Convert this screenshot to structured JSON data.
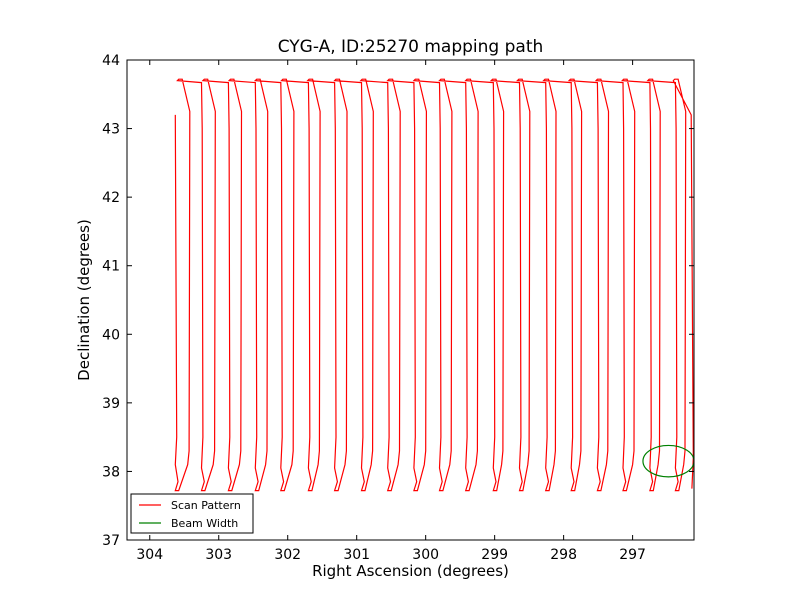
{
  "chart_data": {
    "type": "line",
    "title": "CYG-A, ID:25270 mapping path",
    "xlabel": "Right Ascension (degrees)",
    "ylabel": "Declination (degrees)",
    "xlim": [
      304.33,
      296.11
    ],
    "ylim": [
      37,
      44
    ],
    "x_reversed": true,
    "xticks": [
      304,
      303,
      302,
      301,
      300,
      299,
      298,
      297
    ],
    "xtick_labels": [
      "304",
      "303",
      "302",
      "301",
      "300",
      "299",
      "298",
      "297"
    ],
    "yticks": [
      37,
      38,
      39,
      40,
      41,
      42,
      43,
      44
    ],
    "ytick_labels": [
      "37",
      "38",
      "39",
      "40",
      "41",
      "42",
      "43",
      "44"
    ],
    "grid": false,
    "legend_position": "lower-left",
    "series": [
      {
        "name": "Scan Pattern",
        "color": "#ff0000",
        "style": "scan-pattern",
        "start": [
          303.63,
          43.2
        ],
        "lane_tops_x": [
          303.61,
          303.23,
          302.84,
          302.45,
          302.08,
          301.68,
          301.3,
          300.91,
          300.53,
          300.15,
          299.78,
          299.4,
          299.0,
          298.62,
          298.24,
          297.87,
          297.49,
          297.12,
          296.73,
          296.36
        ],
        "top_y": 43.72,
        "bottom_y": 37.72,
        "zigzag_bottom_x": [
          303.59,
          303.22,
          302.84,
          302.46,
          302.08,
          301.7,
          301.31,
          300.93,
          300.54,
          300.16,
          299.79,
          299.41,
          299.04,
          298.66,
          298.28,
          297.91,
          297.52,
          297.14,
          296.77,
          296.4
        ]
      },
      {
        "name": "Beam Width",
        "color": "#008000",
        "style": "circle",
        "center": [
          296.48,
          38.15
        ],
        "radius_deg": 0.37
      }
    ]
  }
}
